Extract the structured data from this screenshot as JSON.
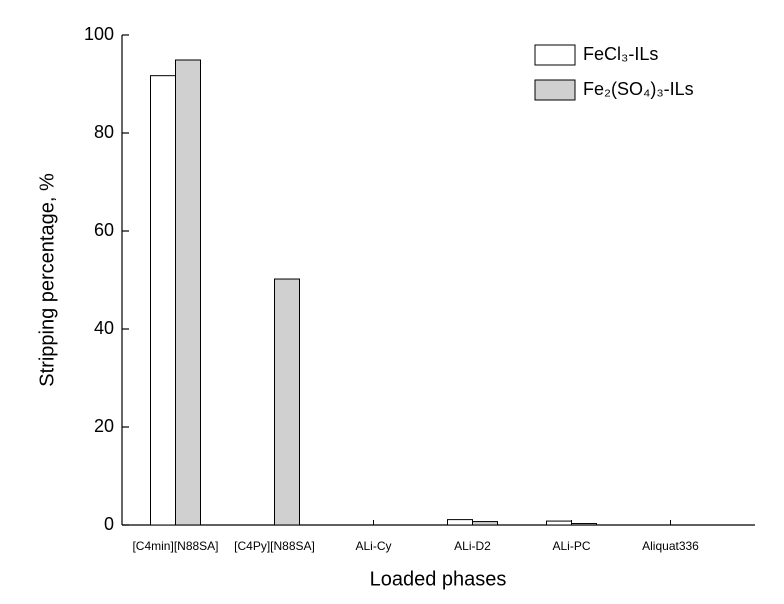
{
  "chart_data": {
    "type": "bar",
    "x_label": "Loaded phases",
    "y_label": "Stripping percentage, %",
    "categories": [
      "[C4min][N88SA]",
      "[C4Py][N88SA]",
      "ALi-Cy",
      "ALi-D2",
      "ALi-PC",
      "Aliquat336"
    ],
    "series": [
      {
        "name": "FeCl₃-ILs",
        "color": "#ffffff",
        "values": [
          91.7,
          0,
          0,
          1.1,
          0.8,
          0
        ]
      },
      {
        "name": "Fe₂(SO₄)₃-ILs",
        "color": "#d0d0d0",
        "values": [
          94.9,
          50.2,
          0,
          0.7,
          0.3,
          0
        ]
      }
    ],
    "ylim": [
      0,
      100
    ],
    "yticks": [
      0,
      20,
      40,
      60,
      80,
      100
    ],
    "grid": false,
    "legend": "top-right"
  }
}
